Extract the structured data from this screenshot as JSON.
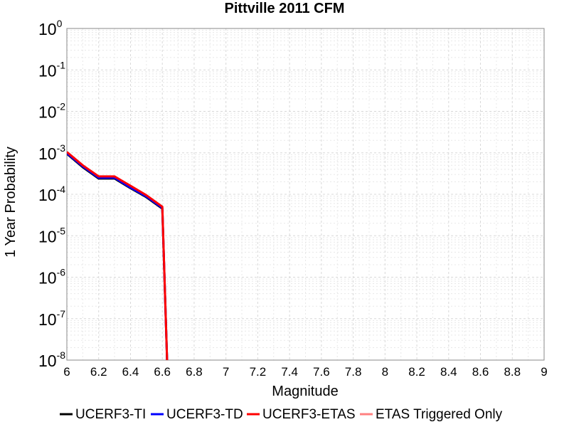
{
  "chart_data": {
    "type": "line",
    "title": "Pittville 2011 CFM",
    "xlabel": "Magnitude",
    "ylabel": "1 Year Probability",
    "yscale": "log",
    "xlim": [
      6,
      9
    ],
    "ylim": [
      1e-08,
      1
    ],
    "x_ticks": [
      "6",
      "6.2",
      "6.4",
      "6.6",
      "6.8",
      "7",
      "7.2",
      "7.4",
      "7.6",
      "7.8",
      "8",
      "8.2",
      "8.4",
      "8.6",
      "8.8",
      "9"
    ],
    "y_ticks": [
      {
        "base": "10",
        "exp": "0"
      },
      {
        "base": "10",
        "exp": "-1"
      },
      {
        "base": "10",
        "exp": "-2"
      },
      {
        "base": "10",
        "exp": "-3"
      },
      {
        "base": "10",
        "exp": "-4"
      },
      {
        "base": "10",
        "exp": "-5"
      },
      {
        "base": "10",
        "exp": "-6"
      },
      {
        "base": "10",
        "exp": "-7"
      },
      {
        "base": "10",
        "exp": "-8"
      }
    ],
    "grid": true,
    "legend_position": "bottom",
    "series": [
      {
        "name": "UCERF3-TI",
        "color": "#000000",
        "x": [
          6.0,
          6.1,
          6.2,
          6.3,
          6.4,
          6.5,
          6.6,
          6.63
        ],
        "y": [
          0.00095,
          0.00045,
          0.00024,
          0.00024,
          0.00014,
          8.5e-05,
          4.5e-05,
          1e-08
        ]
      },
      {
        "name": "UCERF3-TD",
        "color": "#0000ff",
        "x": [
          6.0,
          6.1,
          6.2,
          6.3,
          6.4,
          6.5,
          6.6,
          6.63
        ],
        "y": [
          0.00098,
          0.00047,
          0.00025,
          0.00025,
          0.000145,
          8.8e-05,
          4.7e-05,
          1e-08
        ]
      },
      {
        "name": "UCERF3-ETAS",
        "color": "#ff0000",
        "x": [
          6.0,
          6.1,
          6.2,
          6.3,
          6.4,
          6.5,
          6.6,
          6.63
        ],
        "y": [
          0.00105,
          0.0005,
          0.00027,
          0.00027,
          0.00016,
          9.5e-05,
          5e-05,
          1e-08
        ]
      },
      {
        "name": "ETAS Triggered Only",
        "color": "#ff8080",
        "x": [],
        "y": []
      }
    ]
  }
}
